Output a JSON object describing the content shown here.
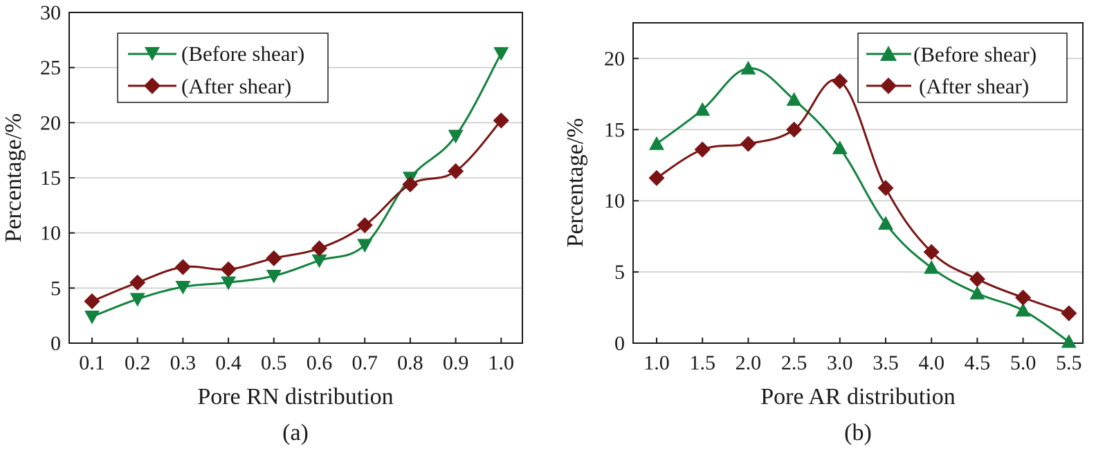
{
  "colors": {
    "before": "#12823f",
    "after": "#7a1414",
    "grid": "#c8c8c8",
    "axis": "#1a1a1a"
  },
  "chart_data": [
    {
      "type": "line",
      "caption": "(a)",
      "xlabel": "Pore RN distribution",
      "ylabel": "Percentage/%",
      "x": [
        0.1,
        0.2,
        0.3,
        0.4,
        0.5,
        0.6,
        0.7,
        0.8,
        0.9,
        1.0
      ],
      "x_tick_labels": [
        "0.1",
        "0.2",
        "0.3",
        "0.4",
        "0.5",
        "0.6",
        "0.7",
        "0.8",
        "0.9",
        "1.0"
      ],
      "ylim": [
        0,
        30
      ],
      "y_ticks": [
        0,
        5,
        10,
        15,
        20,
        25,
        30
      ],
      "y_tick_labels": [
        "0",
        "5",
        "10",
        "15",
        "20",
        "25",
        "30"
      ],
      "grid": true,
      "legend_position": "top-left",
      "series": [
        {
          "name": "(Before shear)",
          "marker": "triangle-down",
          "color": "#12823f",
          "values": [
            2.4,
            4.0,
            5.1,
            5.5,
            6.1,
            7.5,
            8.9,
            15.0,
            18.8,
            26.3
          ]
        },
        {
          "name": "(After shear)",
          "marker": "diamond",
          "color": "#7a1414",
          "values": [
            3.8,
            5.5,
            6.9,
            6.7,
            7.7,
            8.6,
            10.7,
            14.4,
            15.6,
            20.2
          ]
        }
      ]
    },
    {
      "type": "line",
      "caption": "(b)",
      "xlabel": "Pore AR distribution",
      "ylabel": "Percentage/%",
      "x": [
        1.0,
        1.5,
        2.0,
        2.5,
        3.0,
        3.5,
        4.0,
        4.5,
        5.0,
        5.5
      ],
      "x_tick_labels": [
        "1.0",
        "1.5",
        "2.0",
        "2.5",
        "3.0",
        "3.5",
        "4.0",
        "4.5",
        "5.0",
        "5.5"
      ],
      "ylim": [
        0,
        22.5
      ],
      "y_ticks": [
        0,
        5,
        10,
        15,
        20
      ],
      "y_tick_labels": [
        "0",
        "5",
        "10",
        "15",
        "20"
      ],
      "grid": true,
      "legend_position": "top-right",
      "series": [
        {
          "name": "(Before shear)",
          "marker": "triangle-up",
          "color": "#12823f",
          "values": [
            14.0,
            16.4,
            19.3,
            17.1,
            13.7,
            8.4,
            5.3,
            3.5,
            2.3,
            0.1
          ]
        },
        {
          "name": "(After shear)",
          "marker": "diamond",
          "color": "#7a1414",
          "values": [
            11.6,
            13.6,
            14.0,
            15.0,
            18.4,
            10.9,
            6.4,
            4.5,
            3.2,
            2.1
          ]
        }
      ]
    }
  ]
}
